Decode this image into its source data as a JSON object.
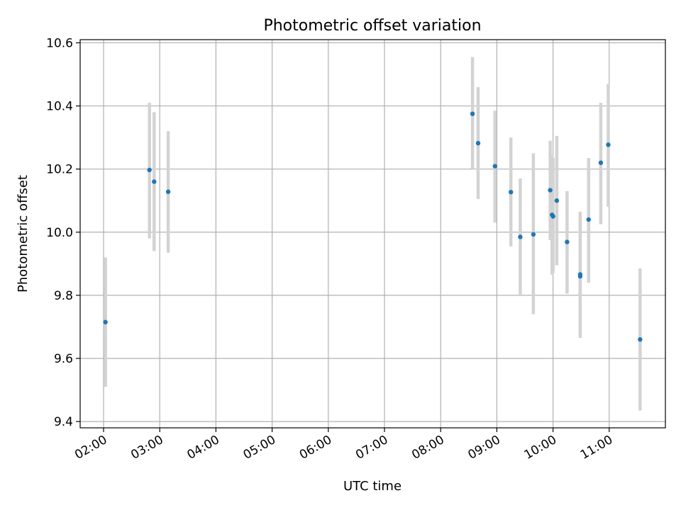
{
  "chart_data": {
    "type": "scatter",
    "title": "Photometric offset variation",
    "xlabel": "UTC time",
    "ylabel": "Photometric offset",
    "x_unit": "UTC time (HH:MM)",
    "xlim": [
      "01:35",
      "12:00"
    ],
    "ylim": [
      9.38,
      10.61
    ],
    "x_ticks": [
      "02:00",
      "03:00",
      "04:00",
      "05:00",
      "06:00",
      "07:00",
      "08:00",
      "09:00",
      "10:00",
      "11:00"
    ],
    "y_ticks": [
      9.4,
      9.6,
      9.8,
      10.0,
      10.2,
      10.4,
      10.6
    ],
    "y_tick_labels": [
      "9.4",
      "9.6",
      "9.8",
      "10.0",
      "10.2",
      "10.4",
      "10.6"
    ],
    "grid": true,
    "marker_color": "#1f77b4",
    "errorbar_color": "#d3d3d3",
    "points": [
      {
        "x": "02:02",
        "y": 9.715,
        "yerr_low": 9.51,
        "yerr_high": 9.92
      },
      {
        "x": "02:49",
        "y": 10.197,
        "yerr_low": 9.98,
        "yerr_high": 10.41
      },
      {
        "x": "02:54",
        "y": 10.16,
        "yerr_low": 9.94,
        "yerr_high": 10.38
      },
      {
        "x": "03:09",
        "y": 10.128,
        "yerr_low": 9.935,
        "yerr_high": 10.32
      },
      {
        "x": "08:34",
        "y": 10.375,
        "yerr_low": 10.2,
        "yerr_high": 10.555
      },
      {
        "x": "08:40",
        "y": 10.282,
        "yerr_low": 10.105,
        "yerr_high": 10.46
      },
      {
        "x": "08:58",
        "y": 10.209,
        "yerr_low": 10.03,
        "yerr_high": 10.385
      },
      {
        "x": "09:15",
        "y": 10.127,
        "yerr_low": 9.955,
        "yerr_high": 10.3
      },
      {
        "x": "09:25",
        "y": 9.985,
        "yerr_low": 9.8,
        "yerr_high": 10.17
      },
      {
        "x": "09:39",
        "y": 9.993,
        "yerr_low": 9.74,
        "yerr_high": 10.25
      },
      {
        "x": "09:57",
        "y": 10.133,
        "yerr_low": 9.975,
        "yerr_high": 10.29
      },
      {
        "x": "09:59",
        "y": 10.055,
        "yerr_low": 9.865,
        "yerr_high": 10.245
      },
      {
        "x": "10:00",
        "y": 10.05,
        "yerr_low": 9.87,
        "yerr_high": 10.235
      },
      {
        "x": "10:04",
        "y": 10.1,
        "yerr_low": 9.895,
        "yerr_high": 10.305
      },
      {
        "x": "10:15",
        "y": 9.969,
        "yerr_low": 9.805,
        "yerr_high": 10.13
      },
      {
        "x": "10:29",
        "y": 9.866,
        "yerr_low": 9.665,
        "yerr_high": 10.065
      },
      {
        "x": "10:29",
        "y": 9.86,
        "yerr_low": 9.68,
        "yerr_high": 10.04
      },
      {
        "x": "10:38",
        "y": 10.04,
        "yerr_low": 9.84,
        "yerr_high": 10.235
      },
      {
        "x": "10:51",
        "y": 10.22,
        "yerr_low": 10.025,
        "yerr_high": 10.41
      },
      {
        "x": "10:59",
        "y": 10.277,
        "yerr_low": 10.08,
        "yerr_high": 10.47
      },
      {
        "x": "11:33",
        "y": 9.66,
        "yerr_low": 9.435,
        "yerr_high": 9.885
      }
    ]
  }
}
